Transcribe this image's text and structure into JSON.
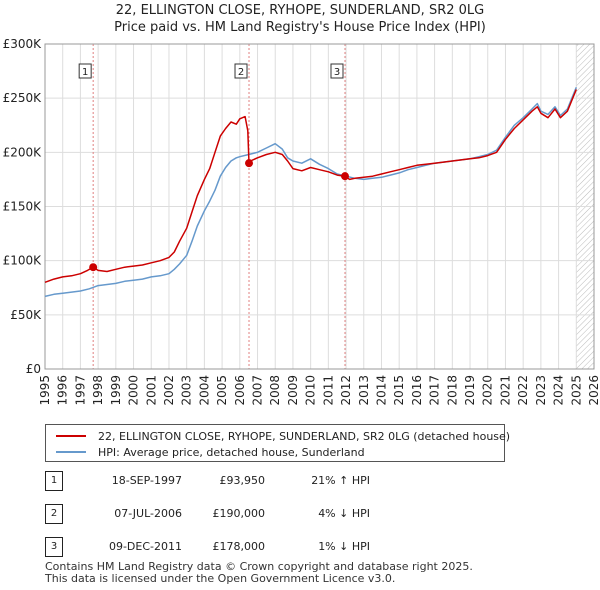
{
  "chart_data": {
    "type": "line",
    "title": "22, ELLINGTON CLOSE, RYHOPE, SUNDERLAND, SR2 0LG",
    "subtitle": "Price paid vs. HM Land Registry's House Price Index (HPI)",
    "xlabel": "",
    "ylabel": "",
    "xlim": [
      1995,
      2026
    ],
    "ylim": [
      0,
      300000
    ],
    "x_ticks": [
      1995,
      1996,
      1997,
      1998,
      1999,
      2000,
      2001,
      2002,
      2003,
      2004,
      2005,
      2006,
      2007,
      2008,
      2009,
      2010,
      2011,
      2012,
      2013,
      2014,
      2015,
      2016,
      2017,
      2018,
      2019,
      2020,
      2021,
      2022,
      2023,
      2024,
      2025,
      2026
    ],
    "y_ticks": [
      {
        "value": 0,
        "label": "£0"
      },
      {
        "value": 50000,
        "label": "£50K"
      },
      {
        "value": 100000,
        "label": "£100K"
      },
      {
        "value": 150000,
        "label": "£150K"
      },
      {
        "value": 200000,
        "label": "£200K"
      },
      {
        "value": 250000,
        "label": "£250K"
      },
      {
        "value": 300000,
        "label": "£300K"
      }
    ],
    "grid": true,
    "future_hatch_from": 2025.0,
    "series": [
      {
        "name": "22, ELLINGTON CLOSE, RYHOPE, SUNDERLAND, SR2 0LG (detached house)",
        "color": "#cc0000",
        "x": [
          1995.0,
          1995.5,
          1996.0,
          1996.5,
          1997.0,
          1997.4,
          1997.72,
          1998.0,
          1998.5,
          1999.0,
          1999.5,
          2000.0,
          2000.5,
          2001.0,
          2001.5,
          2002.0,
          2002.3,
          2002.6,
          2003.0,
          2003.3,
          2003.6,
          2004.0,
          2004.3,
          2004.6,
          2004.9,
          2005.2,
          2005.5,
          2005.8,
          2006.0,
          2006.3,
          2006.45,
          2006.52,
          2006.6,
          2007.0,
          2007.5,
          2008.0,
          2008.4,
          2008.7,
          2009.0,
          2009.5,
          2010.0,
          2010.5,
          2011.0,
          2011.5,
          2011.94,
          2012.2,
          2012.5,
          2013.0,
          2013.5,
          2014.0,
          2014.5,
          2015.0,
          2015.5,
          2016.0,
          2016.5,
          2017.0,
          2017.5,
          2018.0,
          2018.5,
          2019.0,
          2019.5,
          2020.0,
          2020.5,
          2021.0,
          2021.5,
          2022.0,
          2022.5,
          2022.8,
          2023.0,
          2023.4,
          2023.8,
          2024.1,
          2024.5,
          2024.8,
          2025.0
        ],
        "values": [
          80000,
          83000,
          85000,
          86000,
          88000,
          91000,
          93950,
          91000,
          90000,
          92000,
          94000,
          95000,
          96000,
          98000,
          100000,
          103000,
          108000,
          118000,
          130000,
          145000,
          160000,
          175000,
          185000,
          200000,
          215000,
          222000,
          228000,
          226000,
          231000,
          233000,
          220000,
          190000,
          192000,
          195000,
          198000,
          200000,
          198000,
          192000,
          185000,
          183000,
          186000,
          184000,
          182000,
          179000,
          178000,
          175000,
          176000,
          177000,
          178000,
          180000,
          182000,
          184000,
          186000,
          188000,
          189000,
          190000,
          191000,
          192000,
          193000,
          194000,
          195000,
          197000,
          200000,
          212000,
          222000,
          230000,
          238000,
          242000,
          236000,
          232000,
          240000,
          232000,
          238000,
          250000,
          258000
        ]
      },
      {
        "name": "HPI: Average price, detached house, Sunderland",
        "color": "#6699cc",
        "x": [
          1995.0,
          1995.5,
          1996.0,
          1996.5,
          1997.0,
          1997.5,
          1998.0,
          1998.5,
          1999.0,
          1999.5,
          2000.0,
          2000.5,
          2001.0,
          2001.5,
          2002.0,
          2002.3,
          2002.6,
          2003.0,
          2003.3,
          2003.6,
          2004.0,
          2004.3,
          2004.6,
          2004.9,
          2005.2,
          2005.5,
          2005.8,
          2006.0,
          2006.5,
          2007.0,
          2007.5,
          2008.0,
          2008.4,
          2008.7,
          2009.0,
          2009.5,
          2010.0,
          2010.5,
          2011.0,
          2011.5,
          2012.0,
          2012.5,
          2013.0,
          2013.5,
          2014.0,
          2014.5,
          2015.0,
          2015.5,
          2016.0,
          2016.5,
          2017.0,
          2017.5,
          2018.0,
          2018.5,
          2019.0,
          2019.5,
          2020.0,
          2020.5,
          2021.0,
          2021.5,
          2022.0,
          2022.5,
          2022.8,
          2023.0,
          2023.4,
          2023.8,
          2024.1,
          2024.5,
          2024.8,
          2025.0
        ],
        "values": [
          67000,
          69000,
          70000,
          71000,
          72000,
          74000,
          77000,
          78000,
          79000,
          81000,
          82000,
          83000,
          85000,
          86000,
          88000,
          92000,
          97000,
          105000,
          118000,
          132000,
          146000,
          155000,
          165000,
          178000,
          186000,
          192000,
          195000,
          196000,
          198000,
          200000,
          204000,
          208000,
          203000,
          195000,
          192000,
          190000,
          194000,
          189000,
          185000,
          180000,
          178000,
          176000,
          175000,
          176000,
          177000,
          179000,
          181000,
          184000,
          186000,
          188000,
          190000,
          191000,
          192000,
          193000,
          194000,
          196000,
          198000,
          202000,
          214000,
          225000,
          232000,
          240000,
          245000,
          238000,
          235000,
          242000,
          234000,
          240000,
          252000,
          260000
        ]
      }
    ],
    "markers": [
      {
        "label": "1",
        "x": 1997.72,
        "y": 93950
      },
      {
        "label": "2",
        "x": 2006.52,
        "y": 190000
      },
      {
        "label": "3",
        "x": 2011.94,
        "y": 178000
      }
    ]
  },
  "legend": {
    "items": [
      {
        "label": "22, ELLINGTON CLOSE, RYHOPE, SUNDERLAND, SR2 0LG (detached house)",
        "color": "#cc0000"
      },
      {
        "label": "HPI: Average price, detached house, Sunderland",
        "color": "#6699cc"
      }
    ]
  },
  "sales": [
    {
      "num": "1",
      "date": "18-SEP-1997",
      "price": "£93,950",
      "hpi": "21% ↑ HPI"
    },
    {
      "num": "2",
      "date": "07-JUL-2006",
      "price": "£190,000",
      "hpi": "4% ↓ HPI"
    },
    {
      "num": "3",
      "date": "09-DEC-2011",
      "price": "£178,000",
      "hpi": "1% ↓ HPI"
    }
  ],
  "footer": {
    "line1": "Contains HM Land Registry data © Crown copyright and database right 2025.",
    "line2": "This data is licensed under the Open Government Licence v3.0."
  }
}
